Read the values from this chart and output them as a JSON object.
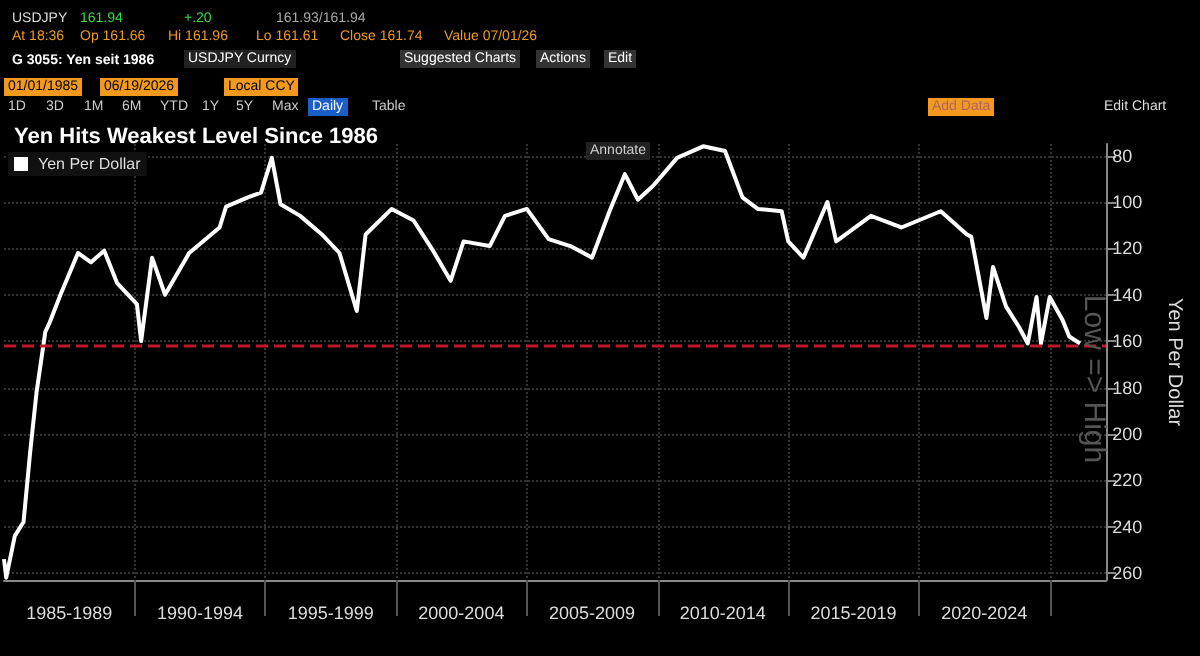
{
  "chart_data": {
    "type": "line",
    "title": "Yen Hits Weakest Level Since 1986",
    "ylabel": "Yen Per Dollar",
    "annotations": [
      "USDJPY",
      "161.94",
      "+.20",
      "161.93/161.94",
      "At 18:36",
      "Op 161.66",
      "Hi 161.96",
      "Lo 161.61",
      "Close 161.74",
      "Value 07/01/26",
      "G 3055: Yen seit 1986",
      "USDJPY Curncy",
      "Suggested Charts",
      "Actions",
      "Edit",
      "01/01/1985",
      "06/19/2026",
      "Local CCY",
      "1D",
      "3D",
      "1M",
      "6M",
      "YTD",
      "1Y",
      "5Y",
      "Max",
      "Daily",
      "Table",
      "Add Data",
      "Edit Chart",
      "Annotate",
      "Low => High"
    ],
    "x": [
      "1985-01",
      "1985-02",
      "1985-06",
      "1985-10",
      "1986-01",
      "1986-04",
      "1986-08",
      "1986-10",
      "1987-03",
      "1987-11",
      "1988-05",
      "1988-11",
      "1989-05",
      "1990-02",
      "1990-04",
      "1990-09",
      "1991-03",
      "1992-02",
      "1993-04",
      "1993-07",
      "1994-05",
      "1994-11",
      "1995-04",
      "1995-08",
      "1996-05",
      "1997-03",
      "1997-11",
      "1998-07",
      "1998-11",
      "1999-11",
      "2000-09",
      "2001-06",
      "2002-02",
      "2002-08",
      "2003-08",
      "2004-03",
      "2005-01",
      "2005-11",
      "2006-09",
      "2007-07",
      "2008-03",
      "2008-10",
      "2009-04",
      "2009-11",
      "2010-10",
      "2011-10",
      "2012-08",
      "2013-04",
      "2013-11",
      "2014-10",
      "2015-01",
      "2015-08",
      "2016-07",
      "2016-11",
      "2018-03",
      "2019-05",
      "2020-11",
      "2021-11",
      "2022-01",
      "2022-08",
      "2022-11",
      "2023-05",
      "2023-11",
      "2024-03",
      "2024-07",
      "2024-09",
      "2025-01",
      "2025-07",
      "2025-10",
      "2026-03"
    ],
    "series": [
      {
        "name": "Yen Per Dollar",
        "color": "#ffffff",
        "values": [
          254,
          262,
          244,
          238,
          208,
          182,
          156,
          152,
          140,
          122,
          126,
          121,
          135,
          144,
          160,
          124,
          140,
          122,
          111,
          102,
          98,
          96,
          81,
          101,
          106,
          114,
          122,
          147,
          114,
          103,
          108,
          121,
          134,
          117,
          119,
          106,
          103,
          116,
          119,
          124,
          104,
          88,
          99,
          93,
          81,
          76,
          78,
          98,
          103,
          104,
          117,
          124,
          100,
          117,
          106,
          111,
          104,
          114,
          115,
          150,
          128,
          145,
          154,
          161,
          141,
          161,
          141,
          151,
          158,
          161
        ]
      }
    ],
    "ylim": [
      263,
      75
    ],
    "yticks": [
      80,
      100,
      120,
      140,
      160,
      180,
      200,
      220,
      240,
      260
    ],
    "xlim": [
      "1985-01",
      "2027-03"
    ],
    "xticks": [
      {
        "value": "1987-07",
        "label": "1985-1989"
      },
      {
        "value": "1990-01",
        "label": null
      },
      {
        "value": "1992-07",
        "label": "1990-1994"
      },
      {
        "value": "1995-01",
        "label": null
      },
      {
        "value": "1997-07",
        "label": "1995-1999"
      },
      {
        "value": "2000-01",
        "label": null
      },
      {
        "value": "2002-07",
        "label": "2000-2004"
      },
      {
        "value": "2005-01",
        "label": null
      },
      {
        "value": "2007-07",
        "label": "2005-2009"
      },
      {
        "value": "2010-01",
        "label": null
      },
      {
        "value": "2012-07",
        "label": "2010-2014"
      },
      {
        "value": "2015-01",
        "label": null
      },
      {
        "value": "2017-07",
        "label": "2015-2019"
      },
      {
        "value": "2020-01",
        "label": null
      },
      {
        "value": "2022-07",
        "label": "2020-2024"
      },
      {
        "value": "2025-01",
        "label": null
      }
    ],
    "ref_lines": [
      {
        "axis": "y",
        "value": 162,
        "color": "#c0182a",
        "line_style": "dashed"
      }
    ],
    "grid": true,
    "legend": "top left",
    "marker": "none",
    "line_style": "solid"
  }
}
